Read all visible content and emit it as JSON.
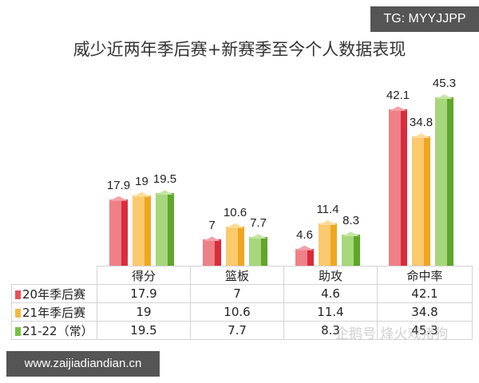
{
  "badge": "TG: MYYJJPP",
  "title": "威少近两年季后赛+新赛季至今个人数据表现",
  "footer_site": "www.zaijiadiandian.cn",
  "watermark": "企鹅号 烽火戏猪狗",
  "colors": {
    "s1": "#e8505b",
    "s2": "#f5b942",
    "s3": "#79c043"
  },
  "chart_data": {
    "type": "bar",
    "title": "威少近两年季后赛+新赛季至今个人数据表现",
    "categories": [
      "得分",
      "篮板",
      "助攻",
      "命中率"
    ],
    "series": [
      {
        "name": "20年季后赛",
        "values": [
          17.9,
          7,
          4.6,
          42.1
        ]
      },
      {
        "name": "21年季后赛",
        "values": [
          19,
          10.6,
          11.4,
          34.8
        ]
      },
      {
        "name": "21-22（常）",
        "values": [
          19.5,
          7.7,
          8.3,
          45.3
        ]
      }
    ],
    "xlabel": "",
    "ylabel": "",
    "grid": false,
    "legend_position": "data-table"
  },
  "table": {
    "headers": [
      "得分",
      "篮板",
      "助攻",
      "命中率"
    ],
    "rows": [
      {
        "label": "20年季后赛",
        "cells": [
          "17.9",
          "7",
          "4.6",
          "42.1"
        ]
      },
      {
        "label": "21年季后赛",
        "cells": [
          "19",
          "10.6",
          "11.4",
          "34.8"
        ]
      },
      {
        "label": "21-22（常）",
        "cells": [
          "19.5",
          "7.7",
          "8.3",
          "45.3"
        ]
      }
    ]
  }
}
